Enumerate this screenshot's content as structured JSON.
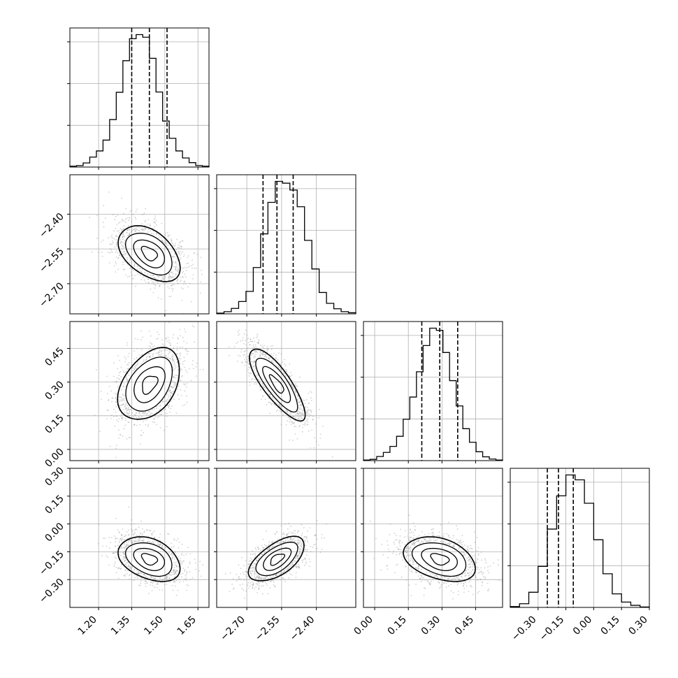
{
  "chart_data": {
    "type": "corner",
    "grid": true,
    "parameters": [
      {
        "id": "p0",
        "range": [
          1.07,
          1.7
        ],
        "ticks": [
          1.2,
          1.35,
          1.5,
          1.65
        ],
        "tick_labels": [
          "1.20",
          "1.35",
          "1.50",
          "1.65"
        ],
        "quantiles": [
          1.35,
          1.43,
          1.51
        ],
        "hist": [
          0.3,
          0.5,
          1.4,
          3.4,
          5.5,
          9.2,
          16.2,
          25.5,
          36.3,
          43.8,
          45.2,
          44.3,
          37.1,
          25.6,
          15.7,
          9.8,
          5.5,
          3.1,
          1.5,
          0.5,
          0.3
        ]
      },
      {
        "id": "p1",
        "range": [
          -2.83,
          -2.23
        ],
        "ticks": [
          -2.7,
          -2.55,
          -2.4
        ],
        "tick_labels": [
          "−2.70",
          "−2.55",
          "−2.40"
        ],
        "quantiles": [
          -2.63,
          -2.57,
          -2.5
        ],
        "hist": [
          0.2,
          0.6,
          1.5,
          3.4,
          6.2,
          12.8,
          22.1,
          30.8,
          36.6,
          36.1,
          34.2,
          29.6,
          20.3,
          12.4,
          5.9,
          2.9,
          1.4,
          0.6,
          0.3
        ]
      },
      {
        "id": "p2",
        "range": [
          -0.05,
          0.57
        ],
        "ticks": [
          0.0,
          0.15,
          0.3,
          0.45
        ],
        "tick_labels": [
          "0.00",
          "0.15",
          "0.30",
          "0.45"
        ],
        "quantiles": [
          0.21,
          0.29,
          0.37
        ],
        "hist": [
          0.2,
          0.4,
          1.3,
          2.6,
          4.5,
          7.7,
          13.1,
          20.1,
          28.1,
          36.4,
          41.9,
          41.2,
          34.2,
          25.3,
          17.3,
          10.1,
          5.8,
          2.8,
          1.2,
          0.5,
          0.2
        ]
      },
      {
        "id": "p3",
        "range": [
          -0.45,
          0.3
        ],
        "ticks": [
          -0.3,
          -0.15,
          0.0,
          0.15,
          0.3
        ],
        "tick_labels": [
          "−0.30",
          "−0.15",
          "0.00",
          "0.15",
          "0.30"
        ],
        "quantiles": [
          -0.25,
          -0.19,
          -0.11
        ],
        "hist": [
          0.2,
          0.9,
          3.7,
          10.0,
          19.1,
          27.2,
          32.3,
          31.1,
          25.4,
          16.5,
          8.2,
          3.3,
          1.3,
          0.5,
          0.1
        ]
      }
    ],
    "pairs": [
      {
        "x": "p0",
        "y": "p1",
        "mean": [
          1.43,
          -2.57
        ],
        "sd": [
          0.07,
          0.06
        ],
        "rho": -0.45
      },
      {
        "x": "p0",
        "y": "p2",
        "mean": [
          1.43,
          0.29
        ],
        "sd": [
          0.07,
          0.08
        ],
        "rho": 0.4
      },
      {
        "x": "p1",
        "y": "p2",
        "mean": [
          -2.57,
          0.29
        ],
        "sd": [
          0.06,
          0.08
        ],
        "rho": -0.8
      },
      {
        "x": "p0",
        "y": "p3",
        "mean": [
          1.43,
          -0.19
        ],
        "sd": [
          0.07,
          0.06
        ],
        "rho": -0.35
      },
      {
        "x": "p1",
        "y": "p3",
        "mean": [
          -2.57,
          -0.19
        ],
        "sd": [
          0.06,
          0.06
        ],
        "rho": 0.6
      },
      {
        "x": "p2",
        "y": "p3",
        "mean": [
          0.29,
          -0.19
        ],
        "sd": [
          0.08,
          0.06
        ],
        "rho": -0.35
      }
    ]
  }
}
